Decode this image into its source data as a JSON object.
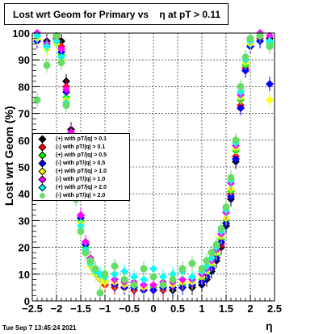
{
  "title_text": "Lost wrt Geom for Primary vs    η at pT > 0.11",
  "timestamp": "Tue Sep  7 13:45:24 2021",
  "chart_data": {
    "type": "scatter",
    "title": "Lost wrt Geom for Primary vs    η at pT > 0.11",
    "xlabel": "η",
    "ylabel": "Lost wrt Geom (%)",
    "xlim": [
      -2.5,
      2.5
    ],
    "ylim": [
      0,
      100
    ],
    "x_ticks": [
      "−2.5",
      "−2",
      "−1.5",
      "−1",
      "−0.5",
      "0",
      "0.5",
      "1",
      "1.5",
      "2",
      "2.5"
    ],
    "y_ticks": [
      "0",
      "10",
      "20",
      "30",
      "40",
      "50",
      "60",
      "70",
      "80",
      "90",
      "100"
    ],
    "grid": true,
    "legend_position": "left-middle",
    "series": [
      {
        "name": "(+) with pT/|q| > 0.1",
        "color": "#000000",
        "marker": "diamond",
        "x": [
          -2.4,
          -2.2,
          -2.0,
          -1.9,
          -1.8,
          -1.7,
          -1.6,
          -1.5,
          -1.4,
          -1.3,
          -1.2,
          -1.1,
          -1.0,
          -0.8,
          -0.6,
          -0.4,
          -0.2,
          0.0,
          0.2,
          0.4,
          0.6,
          0.8,
          1.0,
          1.1,
          1.2,
          1.3,
          1.4,
          1.5,
          1.6,
          1.7,
          1.8,
          1.9,
          2.0,
          2.2,
          2.4
        ],
        "y": [
          99,
          97,
          99,
          97,
          82,
          64,
          45,
          32,
          22,
          15,
          11,
          8,
          7,
          6,
          5,
          4,
          5,
          4,
          5,
          4,
          5,
          5,
          6,
          8,
          11,
          15,
          20,
          28,
          38,
          52,
          72,
          86,
          95,
          99,
          98
        ]
      },
      {
        "name": "(-) with pT/|q| > 0.1",
        "color": "#ff0000",
        "marker": "diamond",
        "x": [
          -2.4,
          -2.2,
          -2.0,
          -1.9,
          -1.8,
          -1.7,
          -1.6,
          -1.5,
          -1.4,
          -1.3,
          -1.2,
          -1.1,
          -1.0,
          -0.8,
          -0.6,
          -0.4,
          -0.2,
          0.0,
          0.2,
          0.4,
          0.6,
          0.8,
          1.0,
          1.1,
          1.2,
          1.3,
          1.4,
          1.5,
          1.6,
          1.7,
          1.8,
          1.9,
          2.0,
          2.2,
          2.4
        ],
        "y": [
          98,
          96,
          98,
          95,
          80,
          62,
          44,
          31,
          21,
          14,
          10,
          8,
          6,
          5,
          5,
          4,
          4,
          4,
          4,
          5,
          5,
          6,
          7,
          9,
          12,
          16,
          21,
          29,
          40,
          54,
          73,
          87,
          96,
          98,
          97
        ]
      },
      {
        "name": "(+) with pT/|q| > 0.5",
        "color": "#00ff00",
        "marker": "diamond",
        "x": [
          -2.4,
          -2.2,
          -2.0,
          -1.9,
          -1.8,
          -1.7,
          -1.6,
          -1.5,
          -1.4,
          -1.3,
          -1.2,
          -1.1,
          -1.0,
          -0.8,
          -0.6,
          -0.4,
          -0.2,
          0.0,
          0.2,
          0.4,
          0.6,
          0.8,
          1.0,
          1.1,
          1.2,
          1.3,
          1.4,
          1.5,
          1.6,
          1.7,
          1.8,
          1.9,
          2.0,
          2.2,
          2.4
        ],
        "y": [
          99,
          95,
          97,
          92,
          76,
          60,
          42,
          30,
          20,
          14,
          11,
          9,
          7,
          6,
          6,
          5,
          5,
          5,
          5,
          6,
          6,
          6,
          8,
          10,
          13,
          17,
          23,
          30,
          41,
          56,
          75,
          88,
          97,
          99,
          96
        ]
      },
      {
        "name": "(-) with pT/|q| > 0.5",
        "color": "#0000ff",
        "marker": "diamond",
        "x": [
          -2.4,
          -2.2,
          -2.0,
          -1.9,
          -1.8,
          -1.7,
          -1.6,
          -1.5,
          -1.4,
          -1.3,
          -1.2,
          -1.1,
          -1.0,
          -0.8,
          -0.6,
          -0.4,
          -0.2,
          0.0,
          0.2,
          0.4,
          0.6,
          0.8,
          1.0,
          1.1,
          1.2,
          1.3,
          1.4,
          1.5,
          1.6,
          1.7,
          1.8,
          1.9,
          2.0,
          2.2,
          2.4
        ],
        "y": [
          97,
          95,
          96,
          93,
          78,
          61,
          43,
          31,
          21,
          15,
          11,
          8,
          7,
          6,
          5,
          5,
          4,
          4,
          5,
          5,
          5,
          6,
          7,
          9,
          12,
          16,
          22,
          29,
          39,
          53,
          72,
          86,
          95,
          97,
          81
        ]
      },
      {
        "name": "(+) with pT/|q| > 1.0",
        "color": "#ffff00",
        "marker": "diamond",
        "x": [
          -2.4,
          -2.2,
          -2.0,
          -1.9,
          -1.8,
          -1.7,
          -1.6,
          -1.5,
          -1.4,
          -1.3,
          -1.2,
          -1.1,
          -1.0,
          -0.8,
          -0.6,
          -0.4,
          -0.2,
          0.0,
          0.2,
          0.4,
          0.6,
          0.8,
          1.0,
          1.1,
          1.2,
          1.3,
          1.4,
          1.5,
          1.6,
          1.7,
          1.8,
          1.9,
          2.0,
          2.2,
          2.4
        ],
        "y": [
          98,
          94,
          96,
          90,
          75,
          58,
          41,
          29,
          19,
          13,
          10,
          8,
          7,
          7,
          6,
          6,
          5,
          6,
          6,
          6,
          7,
          7,
          9,
          11,
          14,
          18,
          24,
          31,
          42,
          57,
          76,
          89,
          96,
          99,
          75
        ]
      },
      {
        "name": "(-) with pT/|q| > 1.0",
        "color": "#ff00ff",
        "marker": "diamond",
        "x": [
          -2.4,
          -2.2,
          -2.0,
          -1.9,
          -1.8,
          -1.7,
          -1.6,
          -1.5,
          -1.4,
          -1.3,
          -1.2,
          -1.1,
          -1.0,
          -0.8,
          -0.6,
          -0.4,
          -0.2,
          0.0,
          0.2,
          0.4,
          0.6,
          0.8,
          1.0,
          1.1,
          1.2,
          1.3,
          1.4,
          1.5,
          1.6,
          1.7,
          1.8,
          1.9,
          2.0,
          2.2,
          2.4
        ],
        "y": [
          100,
          96,
          99,
          94,
          79,
          63,
          45,
          32,
          22,
          16,
          12,
          10,
          9,
          8,
          7,
          7,
          6,
          6,
          7,
          7,
          8,
          8,
          10,
          12,
          15,
          19,
          25,
          33,
          44,
          58,
          77,
          90,
          98,
          100,
          99
        ]
      },
      {
        "name": "(+) with pT/|q| > 2.0",
        "color": "#00ffff",
        "marker": "diamond",
        "x": [
          -2.4,
          -2.2,
          -2.0,
          -1.9,
          -1.8,
          -1.7,
          -1.6,
          -1.5,
          -1.4,
          -1.3,
          -1.2,
          -1.1,
          -1.0,
          -0.8,
          -0.6,
          -0.4,
          -0.2,
          0.0,
          0.2,
          0.4,
          0.6,
          0.8,
          1.0,
          1.1,
          1.2,
          1.3,
          1.4,
          1.5,
          1.6,
          1.7,
          1.8,
          1.9,
          2.0,
          2.2,
          2.4
        ],
        "y": [
          99,
          95,
          97,
          91,
          74,
          57,
          40,
          28,
          19,
          14,
          11,
          10,
          9,
          10,
          11,
          9,
          8,
          12,
          9,
          10,
          11,
          9,
          11,
          13,
          16,
          20,
          26,
          34,
          45,
          59,
          78,
          90,
          97,
          99,
          97
        ]
      },
      {
        "name": "(-) with pT/|q| > 2.0",
        "color": "#66dd66",
        "marker": "circle",
        "x": [
          -2.4,
          -2.2,
          -2.0,
          -1.9,
          -1.8,
          -1.7,
          -1.6,
          -1.5,
          -1.4,
          -1.3,
          -1.2,
          -1.1,
          -1.0,
          -0.8,
          -0.6,
          -0.4,
          -0.2,
          0.0,
          0.2,
          0.4,
          0.6,
          0.8,
          1.0,
          1.1,
          1.2,
          1.3,
          1.4,
          1.5,
          1.6,
          1.7,
          1.8,
          1.9,
          2.0,
          2.2,
          2.4
        ],
        "y": [
          75,
          88,
          99,
          89,
          73,
          55,
          38,
          26,
          18,
          15,
          12,
          3,
          10,
          13,
          8,
          6,
          12,
          9,
          6,
          8,
          12,
          14,
          12,
          15,
          18,
          21,
          27,
          35,
          46,
          60,
          80,
          91,
          98,
          99,
          95
        ]
      }
    ]
  }
}
